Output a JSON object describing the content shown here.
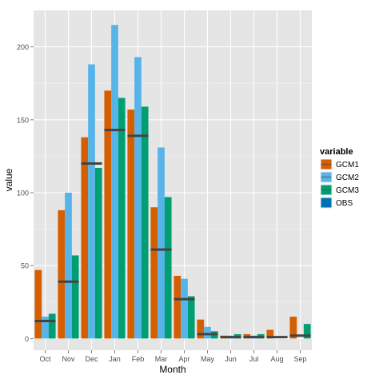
{
  "chart_data": {
    "type": "bar",
    "xlabel": "Month",
    "ylabel": "value",
    "categories": [
      "Oct",
      "Nov",
      "Dec",
      "Jan",
      "Feb",
      "Mar",
      "Apr",
      "May",
      "Jun",
      "Jul",
      "Aug",
      "Sep"
    ],
    "yticks": [
      0,
      50,
      100,
      150,
      200
    ],
    "ylim": [
      -8,
      225
    ],
    "grid": true,
    "legend_title": "variable",
    "legend_position": "right",
    "series": [
      {
        "name": "GCM1",
        "color": "#d55e00",
        "values": [
          47,
          88,
          138,
          170,
          157,
          90,
          43,
          13,
          2,
          3,
          6,
          15
        ]
      },
      {
        "name": "GCM2",
        "color": "#56b4e9",
        "values": [
          15,
          100,
          188,
          215,
          193,
          131,
          41,
          8,
          2,
          2,
          0,
          0
        ]
      },
      {
        "name": "GCM3",
        "color": "#009e73",
        "values": [
          17,
          57,
          117,
          165,
          159,
          97,
          29,
          5,
          3,
          3,
          0,
          10
        ]
      }
    ],
    "obs": {
      "name": "OBS",
      "color": "#0072b2",
      "marker_color": "#444444",
      "values": [
        12,
        39,
        120,
        143,
        139,
        61,
        27,
        3,
        1,
        1,
        1,
        2
      ]
    }
  }
}
